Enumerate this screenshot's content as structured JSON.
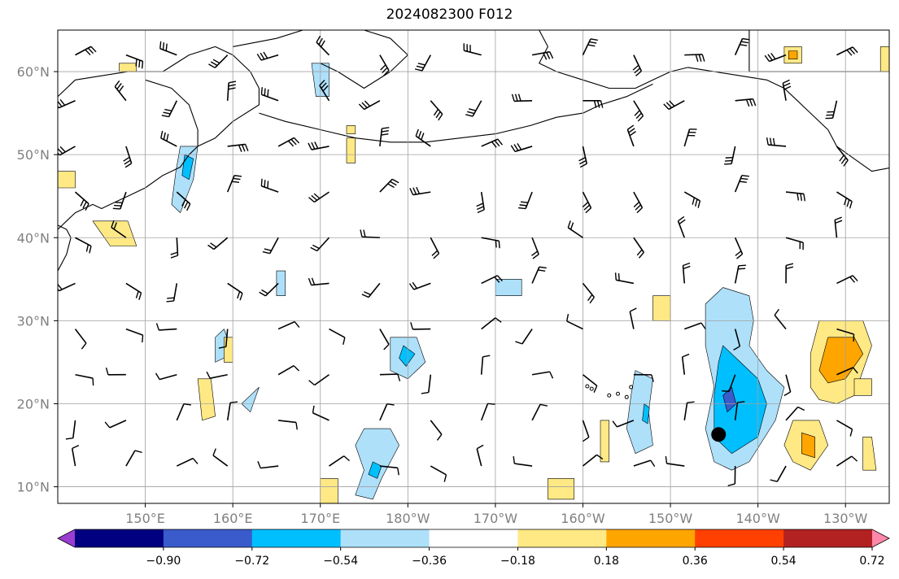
{
  "title": "2024082300 F012",
  "map": {
    "lon_range": [
      140,
      235
    ],
    "lat_range": [
      8,
      65
    ],
    "lon_ticks": [
      {
        "lon": 150,
        "label": "150°E"
      },
      {
        "lon": 160,
        "label": "160°E"
      },
      {
        "lon": 170,
        "label": "170°E"
      },
      {
        "lon": 180,
        "label": "180°W"
      },
      {
        "lon": 190,
        "label": "170°W"
      },
      {
        "lon": 200,
        "label": "160°W"
      },
      {
        "lon": 210,
        "label": "150°W"
      },
      {
        "lon": 220,
        "label": "140°W"
      },
      {
        "lon": 230,
        "label": "130°W"
      }
    ],
    "lat_ticks": [
      {
        "lat": 10,
        "label": "10°N"
      },
      {
        "lat": 20,
        "label": "20°N"
      },
      {
        "lat": 30,
        "label": "30°N"
      },
      {
        "lat": 40,
        "label": "40°N"
      },
      {
        "lat": 50,
        "label": "50°N"
      },
      {
        "lat": 60,
        "label": "60°N"
      }
    ],
    "gridlines": true,
    "storm_marker": {
      "lon": 215.5,
      "lat": 16.3
    }
  },
  "colorbar": {
    "colors": [
      "#9a3dd0",
      "#000080",
      "#3a5bcc",
      "#00bfff",
      "#aee0fa",
      "#ffffff",
      "#ffe985",
      "#ffa500",
      "#ff4000",
      "#b22222",
      "#ff88aa"
    ],
    "levels": [
      -0.9,
      -0.72,
      -0.54,
      -0.36,
      -0.18,
      0.18,
      0.36,
      0.54,
      0.72,
      0.9
    ],
    "tick_labels": [
      "−0.90",
      "−0.72",
      "−0.54",
      "−0.36",
      "−0.18",
      "0.18",
      "0.36",
      "0.54",
      "0.72",
      "0.90"
    ],
    "extend": "both"
  },
  "chart_data": {
    "type": "contour-map",
    "title": "2024082300 F012",
    "projection": "PlateCarree",
    "extent": {
      "lon": [
        140,
        235
      ],
      "lat": [
        8,
        65
      ]
    },
    "field_levels": [
      -0.9,
      -0.72,
      -0.54,
      -0.36,
      -0.18,
      0.18,
      0.36,
      0.54,
      0.72,
      0.9
    ],
    "regions": [
      {
        "name": "negative-band-east",
        "lon": [
          213,
          224
        ],
        "lat": [
          12,
          33
        ],
        "min_level": -0.72
      },
      {
        "name": "negative-band-dateline",
        "lon": [
          174,
          180
        ],
        "lat": [
          9,
          23
        ],
        "min_level": -0.54
      },
      {
        "name": "negative-kuril",
        "lon": [
          153,
          157
        ],
        "lat": [
          43,
          51
        ],
        "min_level": -0.54
      },
      {
        "name": "positive-east",
        "lon": [
          226,
          233
        ],
        "lat": [
          20,
          30
        ],
        "max_level": 0.54
      },
      {
        "name": "positive-southeast",
        "lon": [
          222,
          229
        ],
        "lat": [
          12,
          19
        ],
        "max_level": 0.54
      }
    ],
    "storm_marker": {
      "lon": 215.5,
      "lat": 16.3
    },
    "wind_barbs": true
  }
}
